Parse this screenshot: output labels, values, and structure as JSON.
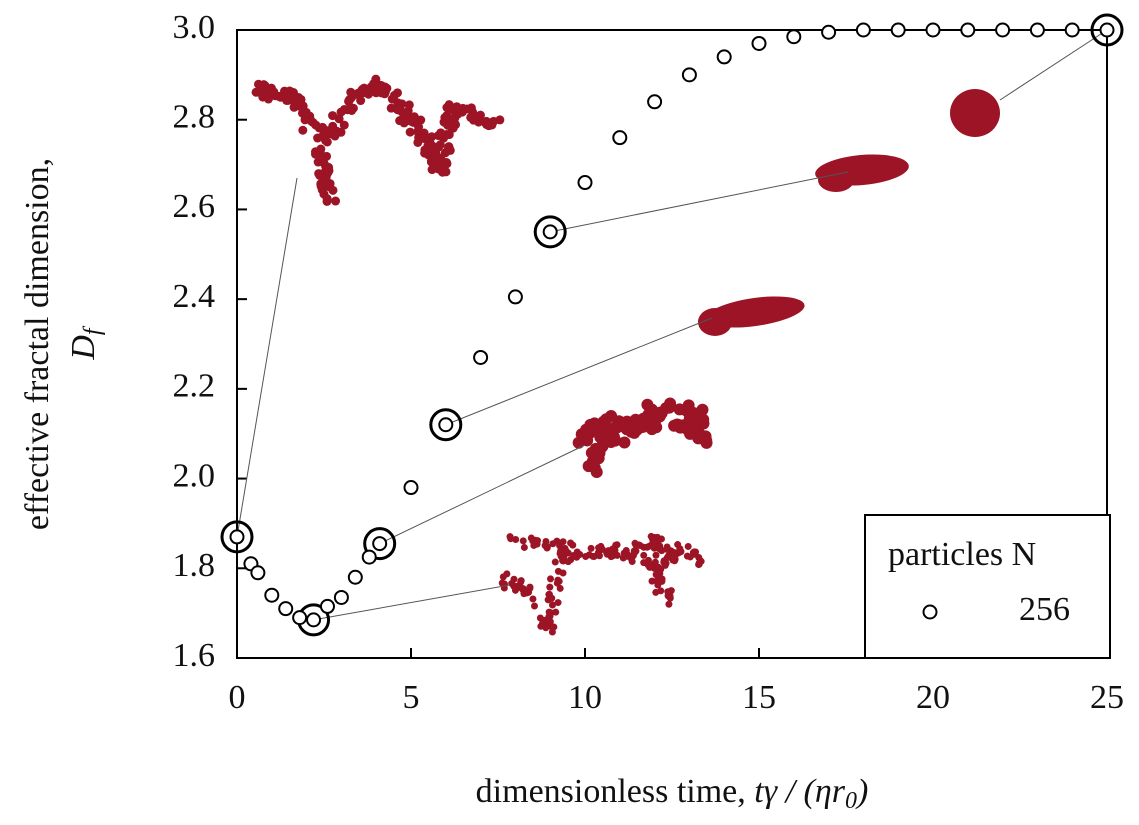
{
  "chart_data": {
    "type": "scatter",
    "xlabel": [
      "dimensionless time, ",
      "tγ / (ηr",
      "0",
      ")"
    ],
    "ylabel": [
      "effective fractal dimension,",
      "D",
      "f"
    ],
    "legend_title": "particles N",
    "legend": "lower right",
    "series": [
      {
        "name": "256",
        "color": "#000000",
        "x": [
          0,
          0.4,
          0.6,
          1.0,
          1.4,
          1.8,
          2.2,
          2.6,
          3.0,
          3.4,
          3.8,
          4.1,
          5,
          6,
          7,
          8,
          9,
          10,
          11,
          12,
          13,
          14,
          15,
          16,
          17,
          18,
          19,
          20,
          21,
          22,
          23,
          24,
          25
        ],
        "values": [
          1.87,
          1.81,
          1.79,
          1.74,
          1.71,
          1.69,
          1.685,
          1.715,
          1.735,
          1.78,
          1.825,
          1.855,
          1.98,
          2.12,
          2.27,
          2.405,
          2.55,
          2.66,
          2.76,
          2.84,
          2.9,
          2.94,
          2.97,
          2.985,
          2.995,
          3.0,
          3.0,
          3.0,
          3.0,
          3.0,
          3.0,
          3.0,
          3.0
        ]
      }
    ],
    "xlim": [
      0,
      25
    ],
    "xticks": [
      0,
      5,
      10,
      15,
      20,
      25
    ],
    "ylim": [
      1.6,
      3.0
    ],
    "yticks": [
      1.6,
      1.8,
      {
        "value": 2.0,
        "label": "2.0"
      },
      2.2,
      2.4,
      2.6,
      2.8,
      {
        "value": 3.0,
        "label": "3.0"
      }
    ]
  }
}
